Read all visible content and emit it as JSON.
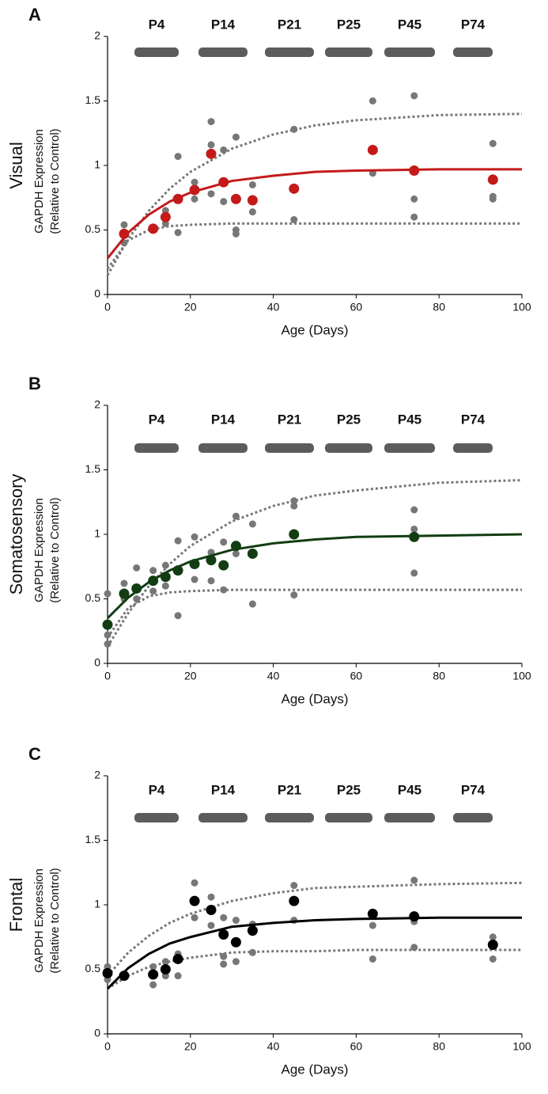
{
  "chart_data": [
    {
      "type": "scatter",
      "panel": "A",
      "region": "Visual",
      "ylabel": [
        "GAPDH Expression",
        "(Relative to Control)"
      ],
      "xlabel": "Age (Days)",
      "blot_labels": [
        "P4",
        "P14",
        "P21",
        "P25",
        "P45",
        "P74"
      ],
      "xlim": [
        0,
        100
      ],
      "ylim": [
        0,
        2
      ],
      "xticks": [
        0,
        20,
        40,
        60,
        80,
        100
      ],
      "yticks": [
        0,
        0.5,
        1,
        1.5,
        2
      ],
      "series": [
        {
          "kind": "points",
          "color": "#777777",
          "x": [
            4,
            4,
            11,
            14,
            14,
            17,
            17,
            21,
            21,
            25,
            25,
            25,
            28,
            28,
            31,
            31,
            31,
            35,
            35,
            45,
            45,
            64,
            64,
            74,
            74,
            74,
            93,
            93,
            93
          ],
          "values": [
            0.54,
            0.4,
            0.5,
            0.55,
            0.65,
            1.07,
            0.48,
            0.87,
            0.74,
            1.34,
            1.16,
            0.78,
            1.12,
            0.72,
            1.22,
            0.5,
            0.47,
            0.85,
            0.64,
            1.28,
            0.58,
            1.5,
            0.94,
            1.54,
            0.74,
            0.6,
            1.17,
            0.76,
            0.74
          ]
        },
        {
          "kind": "dashed",
          "color": "#777777",
          "x": [
            0,
            5,
            10,
            15,
            20,
            30,
            40,
            50,
            60,
            80,
            100
          ],
          "values": [
            0.15,
            0.43,
            0.65,
            0.82,
            0.95,
            1.13,
            1.24,
            1.31,
            1.35,
            1.39,
            1.4
          ]
        },
        {
          "kind": "dashed",
          "color": "#777777",
          "x": [
            0,
            5,
            10,
            15,
            20,
            30,
            40,
            50,
            60,
            80,
            100
          ],
          "values": [
            0.2,
            0.42,
            0.5,
            0.53,
            0.54,
            0.55,
            0.55,
            0.55,
            0.55,
            0.55,
            0.55
          ]
        },
        {
          "kind": "line",
          "color": "#c41a1a",
          "x": [
            0,
            5,
            10,
            15,
            20,
            30,
            40,
            50,
            60,
            80,
            100
          ],
          "values": [
            0.28,
            0.48,
            0.62,
            0.72,
            0.79,
            0.88,
            0.92,
            0.95,
            0.96,
            0.97,
            0.97
          ]
        },
        {
          "kind": "means",
          "color": "#c41a1a",
          "x": [
            4,
            11,
            14,
            17,
            21,
            25,
            28,
            31,
            35,
            45,
            64,
            74,
            93
          ],
          "values": [
            0.47,
            0.51,
            0.6,
            0.74,
            0.81,
            1.09,
            0.87,
            0.74,
            0.73,
            0.82,
            1.12,
            0.96,
            0.89
          ]
        }
      ]
    },
    {
      "type": "scatter",
      "panel": "B",
      "region": "Somatosensory",
      "ylabel": [
        "GAPDH Expression",
        "(Relative to Control)"
      ],
      "xlabel": "Age (Days)",
      "blot_labels": [
        "P4",
        "P14",
        "P21",
        "P25",
        "P45",
        "P74"
      ],
      "xlim": [
        0,
        100
      ],
      "ylim": [
        0,
        2
      ],
      "xticks": [
        0,
        20,
        40,
        60,
        80,
        100
      ],
      "yticks": [
        0,
        0.5,
        1,
        1.5,
        2
      ],
      "series": [
        {
          "kind": "points",
          "color": "#777777",
          "x": [
            0,
            0,
            0,
            4,
            4,
            7,
            7,
            11,
            11,
            14,
            14,
            17,
            17,
            21,
            21,
            25,
            25,
            28,
            28,
            31,
            31,
            35,
            35,
            45,
            45,
            45,
            74,
            74,
            74
          ],
          "values": [
            0.54,
            0.22,
            0.15,
            0.62,
            0.5,
            0.74,
            0.5,
            0.72,
            0.56,
            0.76,
            0.6,
            0.95,
            0.37,
            0.98,
            0.65,
            0.86,
            0.64,
            0.94,
            0.57,
            1.14,
            0.85,
            1.08,
            0.46,
            1.26,
            1.22,
            0.53,
            1.19,
            1.04,
            0.7
          ]
        },
        {
          "kind": "dashed",
          "color": "#777777",
          "x": [
            0,
            5,
            10,
            15,
            20,
            30,
            40,
            50,
            60,
            80,
            100
          ],
          "values": [
            0.13,
            0.39,
            0.6,
            0.77,
            0.91,
            1.1,
            1.22,
            1.3,
            1.34,
            1.4,
            1.42
          ]
        },
        {
          "kind": "dashed",
          "color": "#777777",
          "x": [
            0,
            5,
            10,
            15,
            20,
            30,
            40,
            50,
            60,
            80,
            100
          ],
          "values": [
            0.2,
            0.43,
            0.52,
            0.55,
            0.56,
            0.57,
            0.57,
            0.57,
            0.57,
            0.57,
            0.57
          ]
        },
        {
          "kind": "line",
          "color": "#123d12",
          "x": [
            0,
            5,
            10,
            15,
            20,
            30,
            40,
            50,
            60,
            80,
            100
          ],
          "values": [
            0.35,
            0.51,
            0.63,
            0.72,
            0.79,
            0.88,
            0.93,
            0.96,
            0.98,
            0.99,
            1.0
          ]
        },
        {
          "kind": "means",
          "color": "#123d12",
          "x": [
            0,
            4,
            7,
            11,
            14,
            17,
            21,
            25,
            28,
            31,
            35,
            45,
            74
          ],
          "values": [
            0.3,
            0.54,
            0.58,
            0.64,
            0.67,
            0.72,
            0.77,
            0.8,
            0.76,
            0.91,
            0.85,
            1.0,
            0.98
          ]
        }
      ]
    },
    {
      "type": "scatter",
      "panel": "C",
      "region": "Frontal",
      "ylabel": [
        "GAPDH Expression",
        "(Relative to Control)"
      ],
      "xlabel": "Age (Days)",
      "blot_labels": [
        "P4",
        "P14",
        "P21",
        "P25",
        "P45",
        "P74"
      ],
      "xlim": [
        0,
        100
      ],
      "ylim": [
        0,
        2
      ],
      "xticks": [
        0,
        20,
        40,
        60,
        80,
        100
      ],
      "yticks": [
        0,
        0.5,
        1,
        1.5,
        2
      ],
      "series": [
        {
          "kind": "points",
          "color": "#777777",
          "x": [
            0,
            0,
            4,
            11,
            11,
            14,
            14,
            17,
            17,
            21,
            21,
            25,
            25,
            28,
            28,
            28,
            31,
            31,
            35,
            35,
            45,
            45,
            64,
            64,
            74,
            74,
            74,
            93,
            93
          ],
          "values": [
            0.52,
            0.42,
            0.45,
            0.52,
            0.38,
            0.56,
            0.45,
            0.62,
            0.45,
            1.17,
            0.9,
            1.06,
            0.84,
            0.9,
            0.6,
            0.54,
            0.88,
            0.56,
            0.85,
            0.63,
            1.15,
            0.88,
            0.84,
            0.58,
            1.19,
            0.87,
            0.67,
            0.75,
            0.58
          ]
        },
        {
          "kind": "dashed",
          "color": "#777777",
          "x": [
            0,
            5,
            10,
            15,
            20,
            30,
            40,
            50,
            60,
            80,
            100
          ],
          "values": [
            0.45,
            0.63,
            0.76,
            0.86,
            0.93,
            1.03,
            1.09,
            1.13,
            1.14,
            1.16,
            1.17
          ]
        },
        {
          "kind": "dashed",
          "color": "#777777",
          "x": [
            0,
            5,
            10,
            15,
            20,
            30,
            40,
            50,
            60,
            80,
            100
          ],
          "values": [
            0.35,
            0.45,
            0.52,
            0.56,
            0.59,
            0.63,
            0.64,
            0.64,
            0.65,
            0.65,
            0.65
          ]
        },
        {
          "kind": "line",
          "color": "#000000",
          "x": [
            0,
            5,
            10,
            15,
            20,
            30,
            40,
            50,
            60,
            80,
            100
          ],
          "values": [
            0.35,
            0.51,
            0.62,
            0.7,
            0.75,
            0.83,
            0.86,
            0.88,
            0.89,
            0.9,
            0.9
          ]
        },
        {
          "kind": "means",
          "color": "#000000",
          "x": [
            0,
            4,
            11,
            14,
            17,
            21,
            25,
            28,
            31,
            35,
            45,
            64,
            74,
            93
          ],
          "values": [
            0.47,
            0.45,
            0.46,
            0.5,
            0.58,
            1.03,
            0.96,
            0.77,
            0.71,
            0.8,
            1.03,
            0.93,
            0.91,
            0.69
          ]
        }
      ]
    }
  ]
}
